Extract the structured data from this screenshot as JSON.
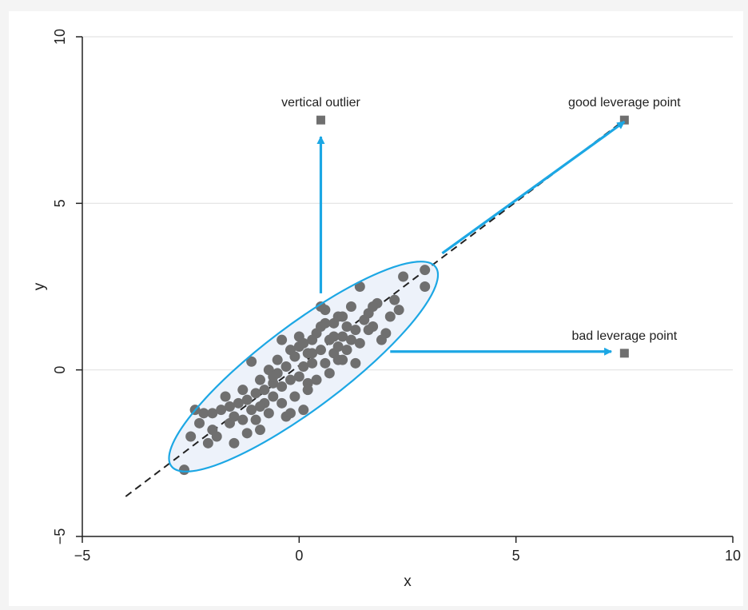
{
  "chart_data": {
    "type": "scatter",
    "xlabel": "x",
    "ylabel": "y",
    "xlim": [
      -5,
      10
    ],
    "ylim": [
      -5,
      10
    ],
    "x_ticks": [
      "−5",
      "0",
      "5",
      "10"
    ],
    "y_ticks": [
      "−5",
      "0",
      "5",
      "10"
    ],
    "grid": true,
    "fit_line": {
      "style": "dashed",
      "x1": -4.0,
      "y1": -3.8,
      "x2": 7.5,
      "y2": 7.5
    },
    "ellipse": {
      "center": [
        0.1,
        0.1
      ],
      "description": "encloses main cluster"
    },
    "series": [
      {
        "marker": "circle",
        "color": "#6f6f6f",
        "points": [
          [
            -2.65,
            -3.0
          ],
          [
            -2.5,
            -2.0
          ],
          [
            -2.3,
            -1.6
          ],
          [
            -2.2,
            -1.3
          ],
          [
            -2.1,
            -2.2
          ],
          [
            -2.0,
            -1.3
          ],
          [
            -2.0,
            -1.8
          ],
          [
            -1.9,
            -2.0
          ],
          [
            -1.8,
            -1.2
          ],
          [
            -1.7,
            -0.8
          ],
          [
            -1.6,
            -1.6
          ],
          [
            -1.5,
            -2.2
          ],
          [
            -1.5,
            -1.4
          ],
          [
            -1.4,
            -1.0
          ],
          [
            -1.3,
            -1.5
          ],
          [
            -1.3,
            -0.6
          ],
          [
            -1.2,
            -1.9
          ],
          [
            -1.1,
            0.25
          ],
          [
            -1.1,
            -1.2
          ],
          [
            -1.0,
            -0.7
          ],
          [
            -1.0,
            -1.5
          ],
          [
            -0.9,
            -1.8
          ],
          [
            -0.9,
            -0.3
          ],
          [
            -0.8,
            -1.0
          ],
          [
            -0.8,
            -0.6
          ],
          [
            -0.7,
            -1.3
          ],
          [
            -0.7,
            0.0
          ],
          [
            -0.6,
            -0.8
          ],
          [
            -0.6,
            -0.4
          ],
          [
            -0.5,
            0.3
          ],
          [
            -0.5,
            -0.1
          ],
          [
            -0.4,
            -1.0
          ],
          [
            -0.4,
            -0.5
          ],
          [
            -0.3,
            -1.4
          ],
          [
            -0.3,
            0.1
          ],
          [
            -0.2,
            -0.3
          ],
          [
            -0.2,
            0.6
          ],
          [
            -0.1,
            -0.8
          ],
          [
            -0.1,
            0.4
          ],
          [
            0.0,
            -0.2
          ],
          [
            0.0,
            0.7
          ],
          [
            0.1,
            -1.2
          ],
          [
            0.1,
            0.1
          ],
          [
            0.2,
            0.5
          ],
          [
            0.2,
            -0.4
          ],
          [
            0.3,
            0.9
          ],
          [
            0.3,
            0.2
          ],
          [
            0.4,
            1.1
          ],
          [
            0.4,
            -0.3
          ],
          [
            0.5,
            0.6
          ],
          [
            0.5,
            1.3
          ],
          [
            0.6,
            0.2
          ],
          [
            0.6,
            1.8
          ],
          [
            0.7,
            0.9
          ],
          [
            0.7,
            -0.1
          ],
          [
            0.8,
            1.4
          ],
          [
            0.8,
            0.5
          ],
          [
            0.9,
            1.6
          ],
          [
            0.9,
            0.7
          ],
          [
            1.0,
            1.0
          ],
          [
            1.0,
            0.3
          ],
          [
            1.1,
            1.3
          ],
          [
            1.1,
            0.6
          ],
          [
            1.2,
            1.9
          ],
          [
            1.2,
            0.9
          ],
          [
            1.3,
            0.2
          ],
          [
            1.3,
            1.2
          ],
          [
            1.4,
            2.5
          ],
          [
            1.4,
            0.8
          ],
          [
            1.5,
            1.5
          ],
          [
            1.6,
            1.7
          ],
          [
            1.7,
            1.3
          ],
          [
            1.8,
            2.0
          ],
          [
            1.9,
            0.9
          ],
          [
            2.0,
            1.1
          ],
          [
            2.1,
            1.6
          ],
          [
            2.2,
            2.1
          ],
          [
            2.3,
            1.8
          ],
          [
            2.4,
            2.8
          ],
          [
            2.9,
            3.0
          ],
          [
            2.9,
            2.5
          ],
          [
            -0.4,
            0.9
          ],
          [
            0.0,
            1.0
          ],
          [
            0.5,
            1.9
          ],
          [
            1.6,
            1.2
          ],
          [
            -0.2,
            -1.3
          ],
          [
            0.8,
            1.0
          ],
          [
            0.3,
            0.5
          ],
          [
            -1.6,
            -1.1
          ],
          [
            -2.4,
            -1.2
          ],
          [
            0.1,
            0.8
          ],
          [
            -0.6,
            -0.2
          ],
          [
            0.9,
            0.3
          ],
          [
            1.7,
            1.9
          ],
          [
            -1.2,
            -0.9
          ],
          [
            0.2,
            -0.6
          ],
          [
            -0.9,
            -1.1
          ],
          [
            1.0,
            1.6
          ],
          [
            0.6,
            1.4
          ]
        ]
      },
      {
        "marker": "square",
        "color": "#6f6f6f",
        "points": [
          [
            0.5,
            7.5
          ],
          [
            7.5,
            7.5
          ],
          [
            7.5,
            0.5
          ]
        ]
      }
    ],
    "annotations": [
      {
        "text": "vertical outlier",
        "x": 0.5,
        "y": 7.5
      },
      {
        "text": "good leverage point",
        "x": 7.5,
        "y": 7.5
      },
      {
        "text": "bad leverage point",
        "x": 7.5,
        "y": 0.5
      }
    ],
    "arrows": [
      {
        "from": [
          0.5,
          2.3
        ],
        "to": [
          0.5,
          7.0
        ]
      },
      {
        "from": [
          3.3,
          3.5
        ],
        "to": [
          7.5,
          7.45
        ]
      },
      {
        "from": [
          2.1,
          0.55
        ],
        "to": [
          7.2,
          0.55
        ]
      }
    ],
    "colors": {
      "points": "#6f6f6f",
      "line": "#222222",
      "accent": "#1ca7e4",
      "grid": "#e3e3e3",
      "ellipse_fill": "#edf2fa"
    }
  }
}
